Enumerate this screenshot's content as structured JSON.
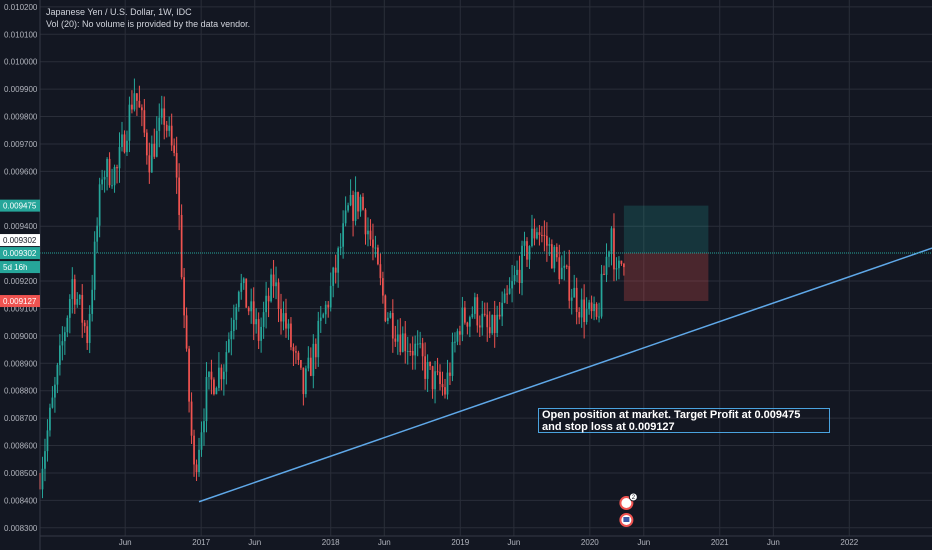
{
  "header": {
    "title": "Japanese Yen / U.S. Dollar, 1W, IDC",
    "volume_note": "Vol (20): No volume is provided by the data vendor."
  },
  "price_axis": {
    "ticks": [
      "0.010200",
      "0.010100",
      "0.010000",
      "0.009900",
      "0.009800",
      "0.009700",
      "0.009600",
      "0.009400",
      "0.009200",
      "0.009100",
      "0.009000",
      "0.008900",
      "0.008800",
      "0.008700",
      "0.008600",
      "0.008500",
      "0.008400",
      "0.008300"
    ],
    "tags": [
      {
        "text": "0.009475",
        "value": 0.009475,
        "color": "#26a69a"
      },
      {
        "text": "0.009302",
        "value": 0.009302,
        "color": "#ffffff",
        "text_color": "#131722"
      },
      {
        "text": "0.009302",
        "value": 0.009302,
        "color": "#26a69a"
      },
      {
        "text": "5d 16h",
        "value": 0.00926,
        "color": "#26a69a"
      },
      {
        "text": "0.009127",
        "value": 0.009127,
        "color": "#ef5350"
      }
    ]
  },
  "time_axis": {
    "labels": [
      "Jun",
      "2017",
      "Jun",
      "2018",
      "Jun",
      "2019",
      "Jun",
      "2020",
      "Jun",
      "2021",
      "Jun",
      "2022"
    ]
  },
  "annotation": {
    "line1": "Open position at market. Target Profit at 0.009475",
    "line2": "and stop loss at 0.009127"
  },
  "colors": {
    "background": "#131722",
    "grid": "#2a2e39",
    "up": "#26a69a",
    "down": "#ef5350",
    "trendline": "#5fa8e8",
    "price_line": "#26a69a"
  },
  "chart_data": {
    "type": "candlestick",
    "title": "Japanese Yen / U.S. Dollar, 1W, IDC",
    "ylim": [
      0.00827,
      0.010225
    ],
    "xlim": [
      "2015-10-05",
      "2022-08-22"
    ],
    "last_price": 0.009302,
    "target_profit": 0.009475,
    "stop_loss": 0.009127,
    "entry": 0.009302,
    "position_period": [
      "2020-04-06",
      "2020-11-30"
    ],
    "trendline": {
      "from": {
        "date": "2016-12-26",
        "value": 0.008395
      },
      "to": {
        "date": "2022-08-22",
        "value": 0.00932
      }
    },
    "series": [
      {
        "d": "2015-10-05",
        "c": 0.0085
      },
      {
        "d": "2015-11-16",
        "c": 0.0088
      },
      {
        "d": "2016-01-04",
        "c": 0.0092
      },
      {
        "d": "2016-02-15",
        "c": 0.009
      },
      {
        "d": "2016-03-28",
        "c": 0.0096
      },
      {
        "d": "2016-05-09",
        "c": 0.0096
      },
      {
        "d": "2016-06-27",
        "c": 0.0099
      },
      {
        "d": "2016-08-08",
        "c": 0.00965
      },
      {
        "d": "2016-09-19",
        "c": 0.0098
      },
      {
        "d": "2016-10-24",
        "c": 0.0096
      },
      {
        "d": "2016-11-21",
        "c": 0.0089
      },
      {
        "d": "2016-12-12",
        "c": 0.0085
      },
      {
        "d": "2017-01-16",
        "c": 0.0088
      },
      {
        "d": "2017-03-06",
        "c": 0.0089
      },
      {
        "d": "2017-04-17",
        "c": 0.0092
      },
      {
        "d": "2017-06-12",
        "c": 0.009
      },
      {
        "d": "2017-07-24",
        "c": 0.0092
      },
      {
        "d": "2017-09-04",
        "c": 0.009
      },
      {
        "d": "2017-10-16",
        "c": 0.0088
      },
      {
        "d": "2017-11-27",
        "c": 0.009
      },
      {
        "d": "2018-01-08",
        "c": 0.0092
      },
      {
        "d": "2018-02-19",
        "c": 0.00945
      },
      {
        "d": "2018-03-26",
        "c": 0.0095
      },
      {
        "d": "2018-04-23",
        "c": 0.00935
      },
      {
        "d": "2018-06-04",
        "c": 0.0091
      },
      {
        "d": "2018-07-16",
        "c": 0.009
      },
      {
        "d": "2018-08-27",
        "c": 0.00895
      },
      {
        "d": "2018-10-08",
        "c": 0.00885
      },
      {
        "d": "2018-11-19",
        "c": 0.0088
      },
      {
        "d": "2018-12-31",
        "c": 0.00905
      },
      {
        "d": "2019-02-11",
        "c": 0.0091
      },
      {
        "d": "2019-03-25",
        "c": 0.009
      },
      {
        "d": "2019-05-06",
        "c": 0.0091
      },
      {
        "d": "2019-06-17",
        "c": 0.00925
      },
      {
        "d": "2019-08-05",
        "c": 0.0094
      },
      {
        "d": "2019-09-16",
        "c": 0.0093
      },
      {
        "d": "2019-10-28",
        "c": 0.0092
      },
      {
        "d": "2019-12-09",
        "c": 0.0091
      },
      {
        "d": "2020-01-20",
        "c": 0.00905
      },
      {
        "d": "2020-03-02",
        "c": 0.0094
      },
      {
        "d": "2020-03-16",
        "c": 0.0092
      },
      {
        "d": "2020-04-06",
        "c": 0.0093
      }
    ]
  }
}
